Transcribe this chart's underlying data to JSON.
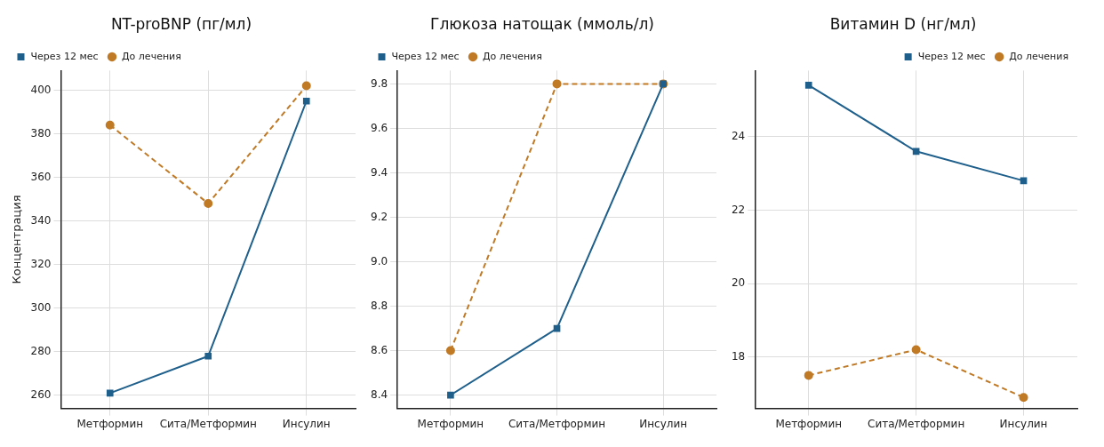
{
  "chart_data": [
    {
      "type": "line",
      "title": "NT-proBNP (пг/мл)",
      "ylabel": "Концентрация",
      "categories": [
        "Метформин",
        "Сита/Метформин",
        "Инсулин"
      ],
      "series": [
        {
          "name": "До лечения",
          "color": "#c07a26",
          "values": [
            384,
            348,
            402
          ],
          "marker": "circle",
          "line_style": "dashed"
        },
        {
          "name": "Через 12 мес",
          "color": "#1f5f8b",
          "values": [
            261,
            278,
            395
          ],
          "marker": "square",
          "line_style": "solid"
        }
      ],
      "ylim": [
        254,
        409
      ],
      "yticks": [
        260,
        280,
        300,
        320,
        340,
        360,
        380,
        400
      ],
      "grid": true,
      "legend": "top left"
    },
    {
      "type": "line",
      "title": "Глюкоза натощак (ммоль/л)",
      "categories": [
        "Метформин",
        "Сита/Метформин",
        "Инсулин"
      ],
      "series": [
        {
          "name": "До лечения",
          "color": "#c07a26",
          "values": [
            8.6,
            9.8,
            9.8
          ],
          "marker": "circle",
          "line_style": "dashed"
        },
        {
          "name": "Через 12 мес",
          "color": "#1f5f8b",
          "values": [
            8.4,
            8.7,
            9.8
          ],
          "marker": "square",
          "line_style": "solid"
        }
      ],
      "ylim": [
        8.34,
        9.86
      ],
      "yticks": [
        {
          "value": 8.4,
          "label": "8.4"
        },
        {
          "value": 8.6,
          "label": "8.6"
        },
        {
          "value": 8.8,
          "label": "8.8"
        },
        {
          "value": 9.0,
          "label": "9.0"
        },
        {
          "value": 9.2,
          "label": "9.2"
        },
        {
          "value": 9.4,
          "label": "9.4"
        },
        {
          "value": 9.6,
          "label": "9.6"
        },
        {
          "value": 9.8,
          "label": "9.8"
        }
      ],
      "grid": true,
      "legend": "top left"
    },
    {
      "type": "line",
      "title": "Витамин D (нг/мл)",
      "categories": [
        "Метформин",
        "Сита/Метформин",
        "Инсулин"
      ],
      "series": [
        {
          "name": "До лечения",
          "color": "#c07a26",
          "values": [
            17.5,
            18.2,
            16.9
          ],
          "marker": "circle",
          "line_style": "dashed"
        },
        {
          "name": "Через 12 мес",
          "color": "#1f5f8b",
          "values": [
            25.4,
            23.6,
            22.8
          ],
          "marker": "square",
          "line_style": "solid"
        }
      ],
      "ylim": [
        16.6,
        25.8
      ],
      "yticks": [
        18,
        20,
        22,
        24
      ],
      "grid": true,
      "legend": "top right"
    }
  ]
}
